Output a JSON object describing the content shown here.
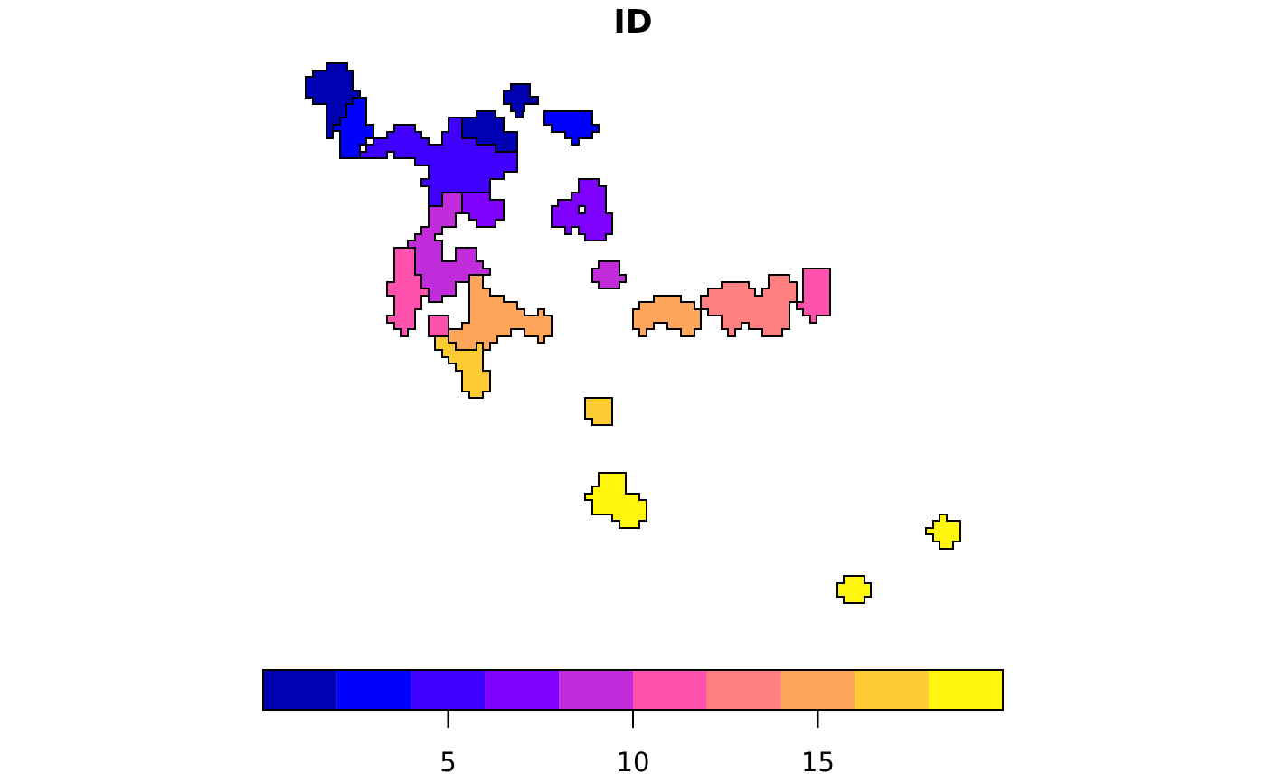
{
  "title": "ID",
  "palette": [
    "#0000B3",
    "#0000FF",
    "#4000FF",
    "#8000FF",
    "#C12CDA",
    "#FF51AE",
    "#FF7F80",
    "#FFA65A",
    "#FFCB33",
    "#FFF50D"
  ],
  "region_colors": {
    "c1": "#0000B3",
    "c2": "#0000FF",
    "c3": "#4000FF",
    "c4": "#8000FF",
    "c5": "#C12CDA",
    "c6": "#FF51AE",
    "c7": "#FF7F80",
    "c8": "#FFA65A",
    "c9": "#FFCB33",
    "c10": "#FFF50D"
  },
  "legend": {
    "min": 0,
    "max": 20,
    "breaks": [
      0,
      2,
      4,
      6,
      8,
      10,
      12,
      14,
      16,
      18,
      20
    ],
    "tick_labels": [
      "5",
      "10",
      "15"
    ],
    "tick_values": [
      5,
      10,
      15
    ]
  }
}
